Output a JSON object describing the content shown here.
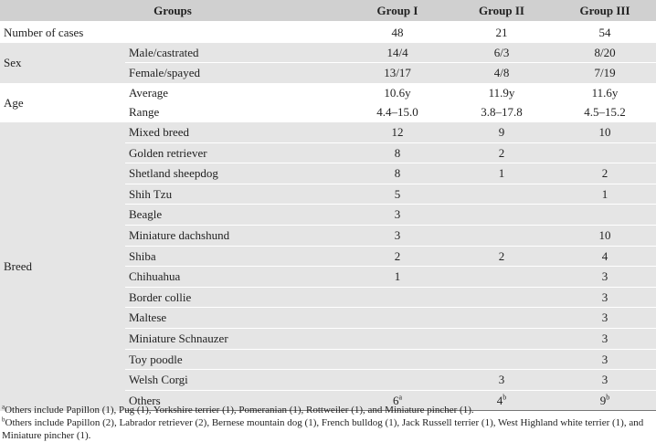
{
  "header": {
    "groups": "Groups",
    "g1": "Group I",
    "g2": "Group II",
    "g3": "Group III"
  },
  "cases": {
    "label": "Number of cases",
    "g1": "48",
    "g2": "21",
    "g3": "54"
  },
  "sex": {
    "label": "Sex",
    "rows": [
      {
        "label": "Male/castrated",
        "g1": "14/4",
        "g2": "6/3",
        "g3": "8/20"
      },
      {
        "label": "Female/spayed",
        "g1": "13/17",
        "g2": "4/8",
        "g3": "7/19"
      }
    ]
  },
  "age": {
    "label": "Age",
    "rows": [
      {
        "label": "Average",
        "g1": "10.6y",
        "g2": "11.9y",
        "g3": "11.6y"
      },
      {
        "label": "Range",
        "g1": "4.4–15.0",
        "g2": "3.8–17.8",
        "g3": "4.5–15.2"
      }
    ]
  },
  "breed": {
    "label": "Breed",
    "rows": [
      {
        "label": "Mixed breed",
        "g1": "12",
        "g2": "9",
        "g3": "10"
      },
      {
        "label": "Golden retriever",
        "g1": "8",
        "g2": "2",
        "g3": ""
      },
      {
        "label": "Shetland sheepdog",
        "g1": "8",
        "g2": "1",
        "g3": "2"
      },
      {
        "label": "Shih Tzu",
        "g1": "5",
        "g2": "",
        "g3": "1"
      },
      {
        "label": "Beagle",
        "g1": "3",
        "g2": "",
        "g3": ""
      },
      {
        "label": "Miniature dachshund",
        "g1": "3",
        "g2": "",
        "g3": "10"
      },
      {
        "label": "Shiba",
        "g1": "2",
        "g2": "2",
        "g3": "4"
      },
      {
        "label": "Chihuahua",
        "g1": "1",
        "g2": "",
        "g3": "3"
      },
      {
        "label": "Border collie",
        "g1": "",
        "g2": "",
        "g3": "3"
      },
      {
        "label": "Maltese",
        "g1": "",
        "g2": "",
        "g3": "3"
      },
      {
        "label": "Miniature Schnauzer",
        "g1": "",
        "g2": "",
        "g3": "3"
      },
      {
        "label": "Toy poodle",
        "g1": "",
        "g2": "",
        "g3": "3"
      },
      {
        "label": "Welsh Corgi",
        "g1": "",
        "g2": "3",
        "g3": "3"
      }
    ],
    "others": {
      "label": "Others",
      "g1": "6",
      "g1_sup": "a",
      "g2": "4",
      "g2_sup": "b",
      "g3": "9",
      "g3_sup": "b"
    }
  },
  "notes": {
    "a_mark": "a",
    "a_text": "Others include Papillon (1), Pug (1), Yorkshire terrier (1), Pomeranian (1), Rottweiler (1), and Miniature pincher (1).",
    "b_mark": "b",
    "b_text": "Others include Papillon (2), Labrador retriever (2), Bernese mountain dog (1), French bulldog (1), Jack Russell terrier (1), West Highland white terrier (1), and Miniature pincher (1)."
  }
}
